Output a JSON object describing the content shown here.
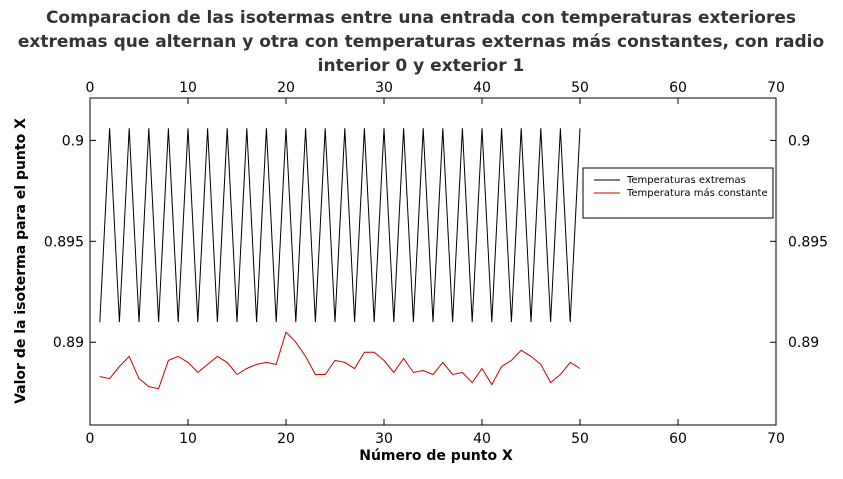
{
  "chart_data": {
    "type": "line",
    "title_lines": [
      "Comparacion de las isotermas entre una entrada con temperaturas exteriores",
      "extremas que alternan y otra con temperaturas externas más constantes, con radio",
      "interior 0 y exterior 1"
    ],
    "xlabel": "Número de punto X",
    "ylabel": "Valor de la isoterma para el punto X",
    "xlim": [
      0,
      70
    ],
    "ylim": [
      0.8859,
      0.9021
    ],
    "x_ticks": [
      "0",
      "10",
      "20",
      "30",
      "40",
      "50",
      "60",
      "70"
    ],
    "x_tick_values": [
      0,
      10,
      20,
      30,
      40,
      50,
      60,
      70
    ],
    "y_ticks": [
      "0.89",
      "0.895",
      "0.9"
    ],
    "y_tick_values": [
      0.89,
      0.895,
      0.9
    ],
    "grid": false,
    "legend_position": "right",
    "series": [
      {
        "name": "Temperaturas extremas",
        "color": "#000000",
        "x": [
          1,
          2,
          3,
          4,
          5,
          6,
          7,
          8,
          9,
          10,
          11,
          12,
          13,
          14,
          15,
          16,
          17,
          18,
          19,
          20,
          21,
          22,
          23,
          24,
          25,
          26,
          27,
          28,
          29,
          30,
          31,
          32,
          33,
          34,
          35,
          36,
          37,
          38,
          39,
          40,
          41,
          42,
          43,
          44,
          45,
          46,
          47,
          48,
          49,
          50
        ],
        "y": [
          0.891,
          0.9006,
          0.891,
          0.9006,
          0.891,
          0.9006,
          0.891,
          0.9006,
          0.891,
          0.9006,
          0.891,
          0.9006,
          0.891,
          0.9006,
          0.891,
          0.9006,
          0.891,
          0.9006,
          0.891,
          0.9006,
          0.891,
          0.9006,
          0.891,
          0.9006,
          0.891,
          0.9006,
          0.891,
          0.9006,
          0.891,
          0.9006,
          0.891,
          0.9006,
          0.891,
          0.9006,
          0.891,
          0.9006,
          0.891,
          0.9006,
          0.891,
          0.9006,
          0.891,
          0.9006,
          0.891,
          0.9006,
          0.891,
          0.9006,
          0.891,
          0.9006,
          0.891,
          0.9006
        ]
      },
      {
        "name": "Temperatura más constante",
        "color": "#cc0000",
        "x": [
          1,
          2,
          3,
          4,
          5,
          6,
          7,
          8,
          9,
          10,
          11,
          12,
          13,
          14,
          15,
          16,
          17,
          18,
          19,
          20,
          21,
          22,
          23,
          24,
          25,
          26,
          27,
          28,
          29,
          30,
          31,
          32,
          33,
          34,
          35,
          36,
          37,
          38,
          39,
          40,
          41,
          42,
          43,
          44,
          45,
          46,
          47,
          48,
          49,
          50
        ],
        "y": [
          0.8883,
          0.8882,
          0.8888,
          0.8893,
          0.8882,
          0.8878,
          0.8877,
          0.8891,
          0.8893,
          0.889,
          0.8885,
          0.8889,
          0.8893,
          0.889,
          0.8884,
          0.8887,
          0.8889,
          0.889,
          0.8889,
          0.8905,
          0.89,
          0.8893,
          0.8884,
          0.8884,
          0.8891,
          0.889,
          0.8887,
          0.8895,
          0.8895,
          0.8891,
          0.8885,
          0.8892,
          0.8885,
          0.8886,
          0.8884,
          0.889,
          0.8884,
          0.8885,
          0.888,
          0.8887,
          0.8879,
          0.8888,
          0.8891,
          0.8896,
          0.8893,
          0.8889,
          0.888,
          0.8884,
          0.889,
          0.8887
        ]
      }
    ]
  }
}
